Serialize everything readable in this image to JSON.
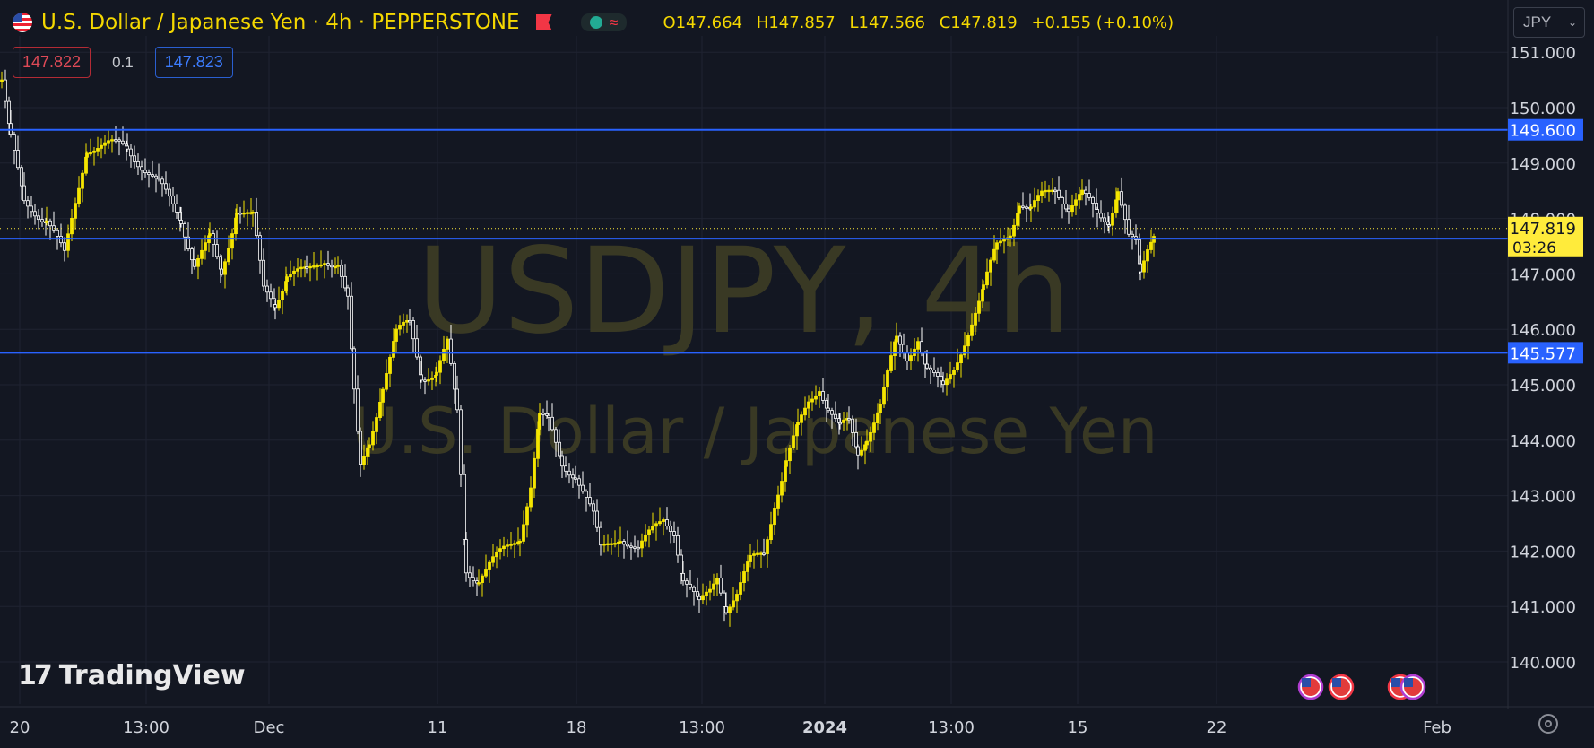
{
  "header": {
    "title": "U.S. Dollar / Japanese Yen · 4h · PEPPERSTONE",
    "ohlc": {
      "open": "O147.664",
      "high": "H147.857",
      "low": "L147.566",
      "close": "C147.819",
      "change": "+0.155 (+0.10%)"
    }
  },
  "trade": {
    "bid": "147.822",
    "spread": "0.1",
    "ask": "147.823"
  },
  "currency_select": "JPY",
  "logo_text": "TradingView",
  "watermark": {
    "symbol": "USDJPY, 4h",
    "description": "U.S. Dollar / Japanese Yen"
  },
  "colors": {
    "background": "#131722",
    "candle": "#f5e500",
    "hline": "#2962ff",
    "label_yellow": "#ffeb3b",
    "grid": "#1f2331"
  },
  "chart_data": {
    "type": "candlestick",
    "title": "U.S. Dollar / Japanese Yen · 4h · PEPPERSTONE",
    "ylim": [
      139.3,
      151.2
    ],
    "y_ticks": [
      "151.000",
      "150.000",
      "149.000",
      "148.000",
      "147.000",
      "146.000",
      "145.000",
      "144.000",
      "143.000",
      "142.000",
      "141.000",
      "140.000"
    ],
    "x_ticks": [
      "20",
      "13:00",
      "Dec",
      "11",
      "18",
      "13:00",
      "2024",
      "13:00",
      "15",
      "22",
      "Feb"
    ],
    "price_levels": [
      {
        "label": "149.600",
        "value": 149.6
      },
      {
        "label": "147.635",
        "value": 147.635
      },
      {
        "label": "145.577",
        "value": 145.577
      }
    ],
    "last_price": {
      "label": "147.819",
      "value": 147.819,
      "countdown": "03:26"
    },
    "anchors": [
      [
        0,
        150.5
      ],
      [
        10,
        149.4
      ],
      [
        25,
        148.3
      ],
      [
        50,
        148.0
      ],
      [
        70,
        147.3
      ],
      [
        95,
        149.3
      ],
      [
        140,
        149.3
      ],
      [
        175,
        148.6
      ],
      [
        200,
        148.0
      ],
      [
        215,
        147.2
      ],
      [
        232,
        147.6
      ],
      [
        245,
        147.0
      ],
      [
        262,
        148.2
      ],
      [
        280,
        148.0
      ],
      [
        292,
        146.7
      ],
      [
        305,
        146.5
      ],
      [
        318,
        147.0
      ],
      [
        340,
        147.0
      ],
      [
        360,
        147.3
      ],
      [
        375,
        147.2
      ],
      [
        386,
        146.5
      ],
      [
        393,
        144.8
      ],
      [
        400,
        143.5
      ],
      [
        410,
        144.0
      ],
      [
        425,
        145.0
      ],
      [
        440,
        145.9
      ],
      [
        455,
        146.1
      ],
      [
        468,
        145.2
      ],
      [
        485,
        145.2
      ],
      [
        497,
        145.7
      ],
      [
        508,
        144.5
      ],
      [
        518,
        141.7
      ],
      [
        532,
        141.5
      ],
      [
        560,
        142.0
      ],
      [
        578,
        142.3
      ],
      [
        590,
        143.2
      ],
      [
        600,
        144.4
      ],
      [
        610,
        144.3
      ],
      [
        625,
        143.6
      ],
      [
        640,
        143.4
      ],
      [
        660,
        142.6
      ],
      [
        668,
        142.0
      ],
      [
        690,
        142.3
      ],
      [
        710,
        142.0
      ],
      [
        738,
        142.6
      ],
      [
        750,
        142.4
      ],
      [
        760,
        141.5
      ],
      [
        778,
        141.0
      ],
      [
        790,
        141.3
      ],
      [
        798,
        141.6
      ],
      [
        808,
        141.0
      ],
      [
        820,
        141.2
      ],
      [
        835,
        141.8
      ],
      [
        850,
        142.0
      ],
      [
        862,
        142.9
      ],
      [
        875,
        143.6
      ],
      [
        888,
        144.2
      ],
      [
        900,
        144.7
      ],
      [
        912,
        145.0
      ],
      [
        922,
        144.6
      ],
      [
        935,
        144.2
      ],
      [
        945,
        144.3
      ],
      [
        955,
        143.8
      ],
      [
        965,
        144.1
      ],
      [
        980,
        144.6
      ],
      [
        998,
        145.8
      ],
      [
        1010,
        145.5
      ],
      [
        1022,
        145.9
      ],
      [
        1032,
        145.3
      ],
      [
        1050,
        144.9
      ],
      [
        1062,
        145.3
      ],
      [
        1078,
        146.0
      ],
      [
        1095,
        146.7
      ],
      [
        1110,
        147.5
      ],
      [
        1125,
        147.8
      ],
      [
        1135,
        148.3
      ],
      [
        1148,
        148.1
      ],
      [
        1160,
        148.4
      ],
      [
        1175,
        148.6
      ],
      [
        1190,
        148.2
      ],
      [
        1205,
        148.4
      ],
      [
        1222,
        148.1
      ],
      [
        1235,
        148.0
      ],
      [
        1245,
        148.5
      ],
      [
        1257,
        147.6
      ],
      [
        1265,
        147.5
      ],
      [
        1270,
        147.0
      ],
      [
        1278,
        147.5
      ],
      [
        1285,
        147.8
      ]
    ]
  }
}
